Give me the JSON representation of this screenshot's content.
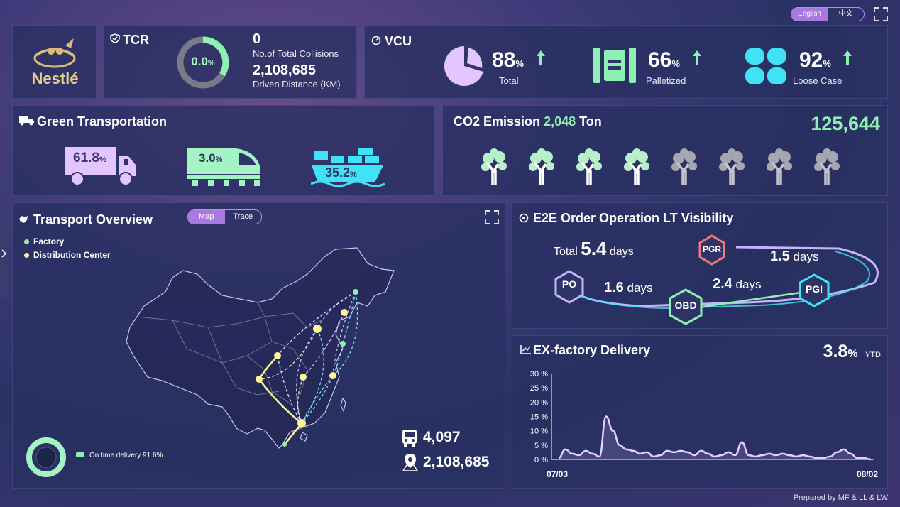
{
  "lang": {
    "english": "English",
    "chinese": "中文"
  },
  "logo": {
    "brand": "Nestlé"
  },
  "tcr": {
    "title": "TCR",
    "ring_value": "0.0",
    "ring_unit": "%",
    "collisions": "0",
    "collisions_label": "No.of Total Collisions",
    "distance": "2,108,685",
    "distance_label": "Driven Distance (KM)"
  },
  "vcu": {
    "title": "VCU",
    "metrics": [
      {
        "value": "88",
        "unit": "%",
        "label": "Total"
      },
      {
        "value": "66",
        "unit": "%",
        "label": "Palletized"
      },
      {
        "value": "92",
        "unit": "%",
        "label": "Loose Case"
      }
    ]
  },
  "green": {
    "title": "Green Transportation",
    "modes": [
      {
        "value": "61.8",
        "unit": "%",
        "icon": "truck-icon"
      },
      {
        "value": "3.0",
        "unit": "%",
        "icon": "train-icon"
      },
      {
        "value": "35.2",
        "unit": "%",
        "icon": "ship-icon"
      }
    ]
  },
  "co2": {
    "title_prefix": "CO2 Emission",
    "value": "2,048",
    "unit": "Ton",
    "total": "125,644",
    "trees_green": 4,
    "trees_grey": 4
  },
  "transport": {
    "title": "Transport Overview",
    "tab_map": "Map",
    "tab_trace": "Trace",
    "legend_factory": "Factory",
    "legend_dc": "Distribution Center",
    "ontime": "On time delivery 91.6%",
    "ontime_value": 91.6,
    "trucks": "4,097",
    "distance": "2,108,685"
  },
  "e2e": {
    "title": "E2E Order Operation LT Visibility",
    "total_label": "Total",
    "total_value": "5.4",
    "total_unit": "days",
    "nodes": {
      "po": "PO",
      "pgr": "PGR",
      "obd": "OBD",
      "pgi": "PGI"
    },
    "seg1": "1.6",
    "seg2": "2.4",
    "seg3": "1.5",
    "days": "days"
  },
  "exfactory": {
    "title": "EX-factory Delivery",
    "value": "3.8",
    "unit": "%",
    "suffix": "YTD"
  },
  "chart_data": {
    "type": "line",
    "title": "EX-factory Delivery",
    "x_start": "07/03",
    "x_end": "08/02",
    "y_ticks": [
      "0 %",
      "5 %",
      "10 %",
      "15 %",
      "20 %",
      "25 %",
      "30 %"
    ],
    "ylim": [
      0,
      30
    ],
    "values": [
      0.5,
      3.5,
      2,
      1.5,
      3,
      2,
      1,
      15,
      10,
      5,
      3.5,
      3,
      2,
      2.5,
      1,
      1.5,
      3,
      2.5,
      3,
      2.5,
      1.5,
      3,
      2,
      1,
      1.5,
      2.5,
      1.5,
      6,
      1.5,
      1,
      1.5,
      2,
      1.5,
      2,
      1.5,
      1,
      1.5,
      1,
      0.5,
      0.5,
      1,
      2.5,
      3.5,
      2,
      0.5,
      0.5,
      0
    ]
  },
  "footer": {
    "credit": "Prepared by MF & LL & LW"
  }
}
